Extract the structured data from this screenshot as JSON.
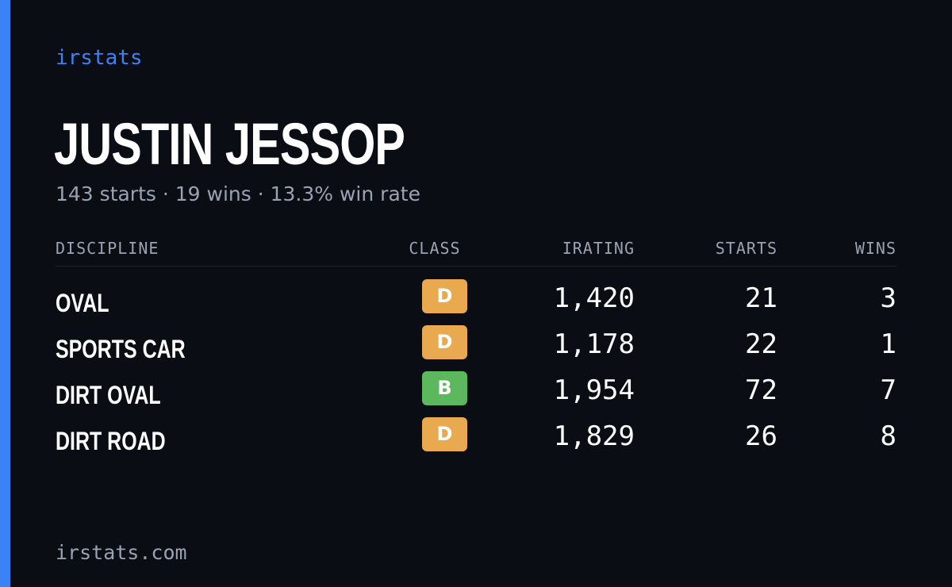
{
  "brand": "irstats",
  "driver": {
    "name": "JUSTIN JESSOP",
    "summary": "143 starts · 19 wins · 13.3% win rate"
  },
  "table": {
    "headers": {
      "discipline": "DISCIPLINE",
      "class": "CLASS",
      "irating": "IRATING",
      "starts": "STARTS",
      "wins": "WINS"
    },
    "rows": [
      {
        "discipline": "OVAL",
        "class": "D",
        "class_color": "#e9a94f",
        "irating": "1,420",
        "starts": "21",
        "wins": "3"
      },
      {
        "discipline": "SPORTS CAR",
        "class": "D",
        "class_color": "#e9a94f",
        "irating": "1,178",
        "starts": "22",
        "wins": "1"
      },
      {
        "discipline": "DIRT OVAL",
        "class": "B",
        "class_color": "#5cb85c",
        "irating": "1,954",
        "starts": "72",
        "wins": "7"
      },
      {
        "discipline": "DIRT ROAD",
        "class": "D",
        "class_color": "#e9a94f",
        "irating": "1,829",
        "starts": "26",
        "wins": "8"
      }
    ]
  },
  "footer": "irstats.com",
  "colors": {
    "accent": "#3b82f6",
    "background": "#0a0d14",
    "muted_text": "#9aa3b2"
  }
}
